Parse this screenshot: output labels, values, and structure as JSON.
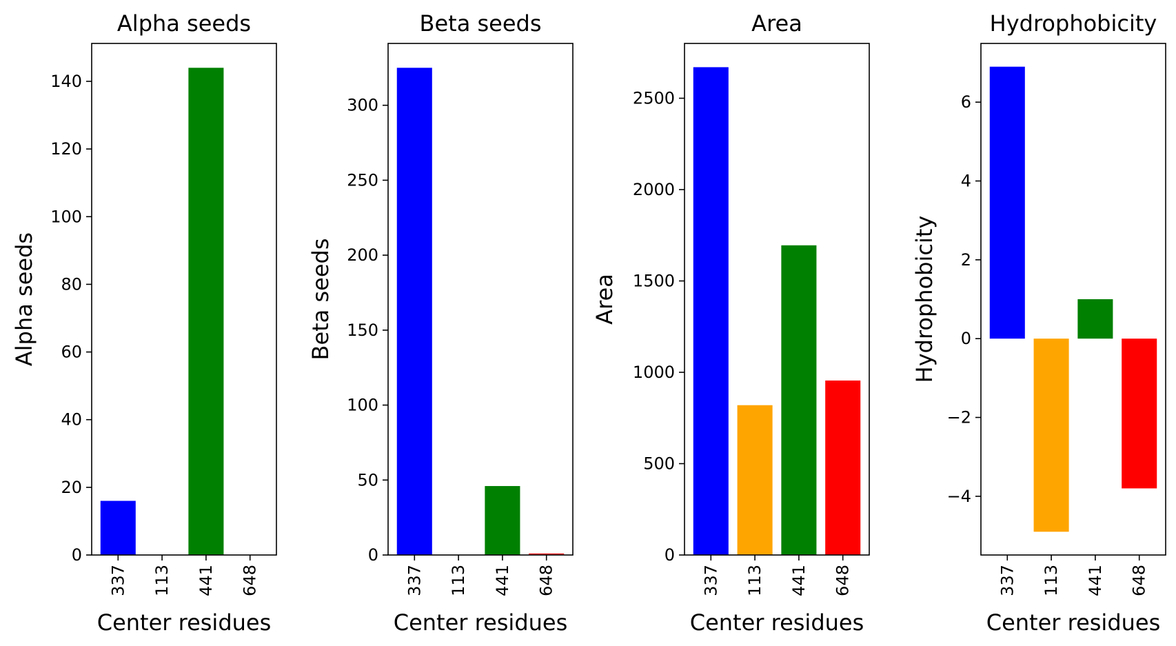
{
  "chart_data": [
    {
      "type": "bar",
      "title": "Alpha seeds",
      "xlabel": "Center residues",
      "ylabel": "Alpha seeds",
      "categories": [
        "337",
        "113",
        "441",
        "648"
      ],
      "values": [
        16,
        0,
        144,
        0
      ],
      "colors": [
        "#0000ff",
        "#ffa500",
        "#008000",
        "#ff0000"
      ],
      "ylim": [
        0,
        151.2
      ],
      "yticks": [
        0,
        20,
        40,
        60,
        80,
        100,
        120,
        140
      ],
      "ytick_labels": [
        "0",
        "20",
        "40",
        "60",
        "80",
        "100",
        "120",
        "140"
      ],
      "grid": false
    },
    {
      "type": "bar",
      "title": "Beta seeds",
      "xlabel": "Center residues",
      "ylabel": "Beta seeds",
      "categories": [
        "337",
        "113",
        "441",
        "648"
      ],
      "values": [
        325,
        0,
        46,
        1
      ],
      "colors": [
        "#0000ff",
        "#ffa500",
        "#008000",
        "#ff0000"
      ],
      "ylim": [
        0,
        341.25
      ],
      "yticks": [
        0,
        50,
        100,
        150,
        200,
        250,
        300
      ],
      "ytick_labels": [
        "0",
        "50",
        "100",
        "150",
        "200",
        "250",
        "300"
      ],
      "grid": false
    },
    {
      "type": "bar",
      "title": "Area",
      "xlabel": "Center residues",
      "ylabel": "Area",
      "categories": [
        "337",
        "113",
        "441",
        "648"
      ],
      "values": [
        2670,
        820,
        1695,
        955
      ],
      "colors": [
        "#0000ff",
        "#ffa500",
        "#008000",
        "#ff0000"
      ],
      "ylim": [
        0,
        2800
      ],
      "yticks": [
        0,
        500,
        1000,
        1500,
        2000,
        2500
      ],
      "ytick_labels": [
        "0",
        "500",
        "1000",
        "1500",
        "2000",
        "2500"
      ],
      "grid": false
    },
    {
      "type": "bar",
      "title": "Hydrophobicity",
      "xlabel": "Center residues",
      "ylabel": "Hydrophobicity",
      "categories": [
        "337",
        "113",
        "441",
        "648"
      ],
      "values": [
        6.9,
        -4.9,
        1.0,
        -3.8
      ],
      "colors": [
        "#0000ff",
        "#ffa500",
        "#008000",
        "#ff0000"
      ],
      "ylim": [
        -5.49,
        7.49
      ],
      "yticks": [
        -4,
        -2,
        0,
        2,
        4,
        6
      ],
      "ytick_labels": [
        "−4",
        "−2",
        "0",
        "2",
        "4",
        "6"
      ],
      "grid": false
    }
  ]
}
